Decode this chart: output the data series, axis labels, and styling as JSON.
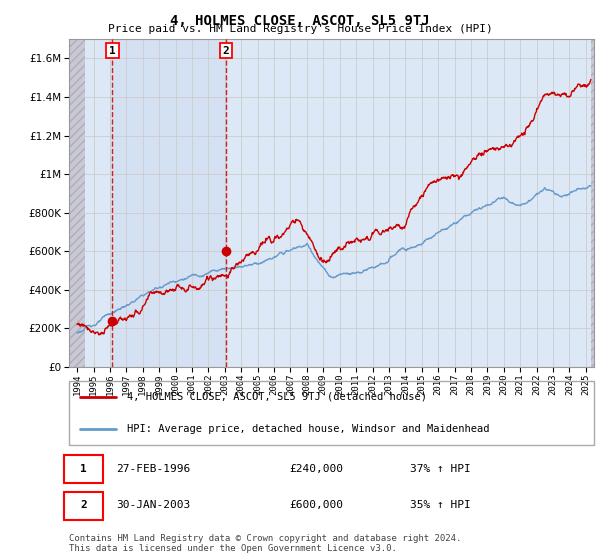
{
  "title": "4, HOLMES CLOSE, ASCOT, SL5 9TJ",
  "subtitle": "Price paid vs. HM Land Registry's House Price Index (HPI)",
  "ylim": [
    0,
    1700000
  ],
  "xlim_start": 1993.5,
  "xlim_end": 2025.5,
  "yticks": [
    0,
    200000,
    400000,
    600000,
    800000,
    1000000,
    1200000,
    1400000,
    1600000
  ],
  "ytick_labels": [
    "£0",
    "£200K",
    "£400K",
    "£600K",
    "£800K",
    "£1M",
    "£1.2M",
    "£1.4M",
    "£1.6M"
  ],
  "xtick_years": [
    1994,
    1995,
    1996,
    1997,
    1998,
    1999,
    2000,
    2001,
    2002,
    2003,
    2004,
    2005,
    2006,
    2007,
    2008,
    2009,
    2010,
    2011,
    2012,
    2013,
    2014,
    2015,
    2016,
    2017,
    2018,
    2019,
    2020,
    2021,
    2022,
    2023,
    2024,
    2025
  ],
  "sale1_x": 1996.15,
  "sale1_y": 240000,
  "sale2_x": 2003.08,
  "sale2_y": 600000,
  "sale_color": "#cc0000",
  "hpi_color": "#6699cc",
  "shade_color": "#dce8f5",
  "hatch_color": "#c8c8c8",
  "grid_color": "#cccccc",
  "legend_label_red": "4, HOLMES CLOSE, ASCOT, SL5 9TJ (detached house)",
  "legend_label_blue": "HPI: Average price, detached house, Windsor and Maidenhead",
  "footnote": "Contains HM Land Registry data © Crown copyright and database right 2024.\nThis data is licensed under the Open Government Licence v3.0.",
  "table_rows": [
    {
      "num": "1",
      "date": "27-FEB-1996",
      "price": "£240,000",
      "hpi": "37% ↑ HPI"
    },
    {
      "num": "2",
      "date": "30-JAN-2003",
      "price": "£600,000",
      "hpi": "35% ↑ HPI"
    }
  ]
}
